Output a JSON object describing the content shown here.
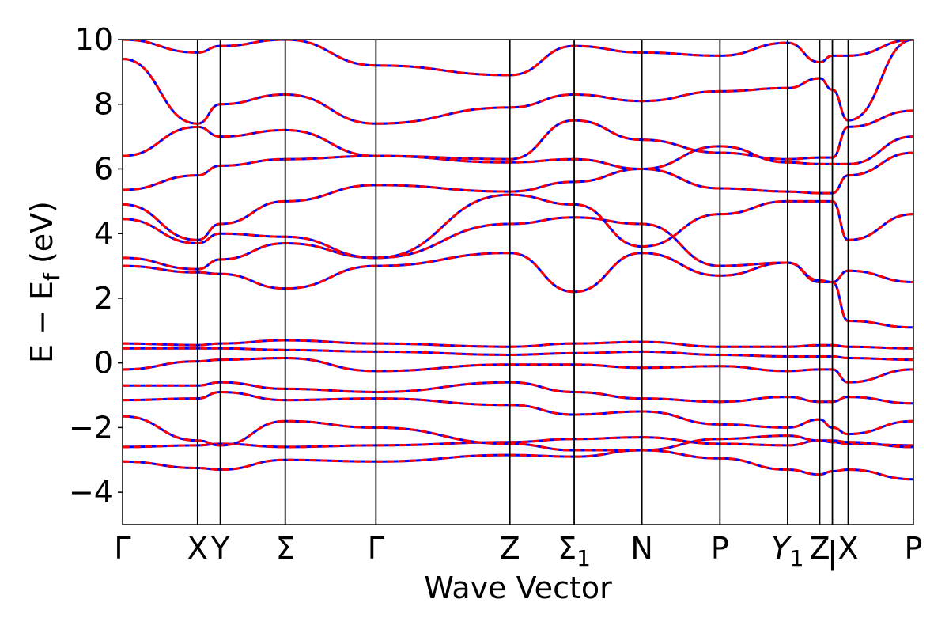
{
  "chart_data": {
    "type": "line",
    "title": "",
    "xlabel": "Wave Vector",
    "ylabel": "E − E",
    "ylabel_sub": "f",
    "ylabel_unit": " (eV)",
    "ylim": [
      -5,
      10
    ],
    "yticks": [
      -4,
      -2,
      0,
      2,
      4,
      6,
      8,
      10
    ],
    "xlim": [
      0,
      1
    ],
    "grid": false,
    "legend": null,
    "colors": {
      "band_solid": "#ff0000",
      "band_dashed": "#0000ff",
      "frame": "#000000"
    },
    "k_points": [
      {
        "label": "Γ",
        "sub": "",
        "x": 0.0
      },
      {
        "label": "X",
        "sub": "",
        "x": 0.1364
      },
      {
        "label": "Y",
        "sub": "",
        "x": 0.1778
      },
      {
        "label": "Σ",
        "sub": "",
        "x": 0.2959
      },
      {
        "label": "Γ",
        "sub": "",
        "x": 0.4608
      },
      {
        "label": "Z",
        "sub": "",
        "x": 0.7044
      },
      {
        "label": "Σ",
        "sub": "1",
        "x": 0.8214,
        "italic": false
      },
      {
        "label": "N",
        "sub": "",
        "x": 0.9445
      },
      {
        "label": "P",
        "sub": "",
        "x": 1.0865
      },
      {
        "label": "Y",
        "sub": "1",
        "x": 1.2096,
        "italic": true
      },
      {
        "label": "Z",
        "sub": "",
        "x": 1.2679
      },
      {
        "label": "|",
        "sub": "",
        "x": 1.291
      },
      {
        "label": "X",
        "sub": "",
        "x": 1.3198
      },
      {
        "label": "P",
        "sub": "",
        "x": 1.4384
      }
    ],
    "segment_breaks": [
      1.2679
    ],
    "series": [
      {
        "values": [
          -2.6,
          -2.55,
          -2.5,
          -2.6,
          -2.55,
          -2.45,
          -2.35,
          -2.3,
          -2.5,
          -2.55,
          -2.4,
          -2.45,
          -2.5,
          -2.55
        ]
      },
      {
        "values": [
          -3.05,
          -3.25,
          -3.3,
          -3.0,
          -3.05,
          -2.85,
          -2.9,
          -2.7,
          -2.95,
          -3.3,
          -3.45,
          -3.35,
          -3.3,
          -3.6
        ]
      },
      {
        "values": [
          -1.65,
          -2.4,
          -2.55,
          -1.8,
          -2.0,
          -2.5,
          -2.7,
          -2.7,
          -2.35,
          -2.25,
          -2.4,
          -2.4,
          -2.45,
          -2.6
        ]
      },
      {
        "values": [
          -1.15,
          -1.1,
          -0.9,
          -1.15,
          -1.1,
          -1.3,
          -1.6,
          -1.5,
          -1.9,
          -2.0,
          -1.75,
          -2.0,
          -2.2,
          -1.8
        ]
      },
      {
        "values": [
          -0.7,
          -0.7,
          -0.6,
          -0.8,
          -0.9,
          -0.6,
          -0.9,
          -1.1,
          -1.2,
          -1.05,
          -1.2,
          -1.2,
          -1.05,
          -1.25
        ]
      },
      {
        "values": [
          -0.2,
          0.05,
          0.1,
          0.15,
          -0.25,
          -0.05,
          -0.05,
          -0.15,
          -0.1,
          -0.25,
          -0.2,
          -0.2,
          -0.6,
          -0.2
        ]
      },
      {
        "values": [
          0.45,
          0.45,
          0.45,
          0.4,
          0.35,
          0.25,
          0.3,
          0.35,
          0.25,
          0.2,
          0.2,
          0.2,
          0.15,
          0.1
        ]
      },
      {
        "values": [
          0.6,
          0.55,
          0.6,
          0.7,
          0.6,
          0.5,
          0.6,
          0.65,
          0.5,
          0.5,
          0.55,
          0.55,
          0.5,
          0.45
        ]
      },
      {
        "values": [
          3.0,
          2.8,
          2.75,
          2.3,
          3.0,
          3.4,
          2.2,
          3.4,
          2.7,
          3.1,
          2.5,
          2.5,
          2.85,
          2.5
        ]
      },
      {
        "values": [
          3.25,
          2.9,
          3.2,
          3.7,
          3.25,
          4.3,
          4.5,
          4.3,
          3.0,
          3.1,
          2.55,
          2.5,
          1.3,
          1.1
        ]
      },
      {
        "values": [
          4.45,
          3.7,
          4.0,
          3.9,
          3.25,
          5.2,
          4.9,
          3.6,
          4.6,
          5.0,
          5.0,
          5.0,
          3.8,
          4.6
        ]
      },
      {
        "values": [
          4.9,
          3.8,
          4.3,
          5.0,
          5.5,
          5.3,
          5.6,
          6.0,
          5.4,
          5.3,
          5.25,
          5.25,
          5.8,
          6.5
        ]
      },
      {
        "values": [
          5.35,
          5.8,
          6.1,
          6.3,
          6.4,
          6.2,
          6.3,
          6.0,
          6.7,
          6.2,
          6.15,
          6.15,
          6.15,
          7.0
        ]
      },
      {
        "values": [
          6.4,
          7.3,
          7.0,
          7.2,
          6.4,
          6.3,
          7.5,
          6.9,
          6.5,
          6.3,
          6.35,
          6.35,
          7.3,
          7.8
        ]
      },
      {
        "values": [
          9.4,
          7.4,
          8.0,
          8.3,
          7.4,
          7.9,
          8.3,
          8.1,
          8.4,
          8.5,
          8.8,
          8.45,
          7.5,
          10.0
        ]
      },
      {
        "values": [
          10.0,
          9.6,
          9.8,
          10.0,
          9.2,
          8.9,
          9.8,
          9.6,
          9.5,
          9.9,
          9.3,
          9.5,
          9.5,
          10.0
        ]
      }
    ]
  },
  "ytick_labels": [
    "−4",
    "−2",
    "0",
    "2",
    "4",
    "6",
    "8",
    "10"
  ]
}
